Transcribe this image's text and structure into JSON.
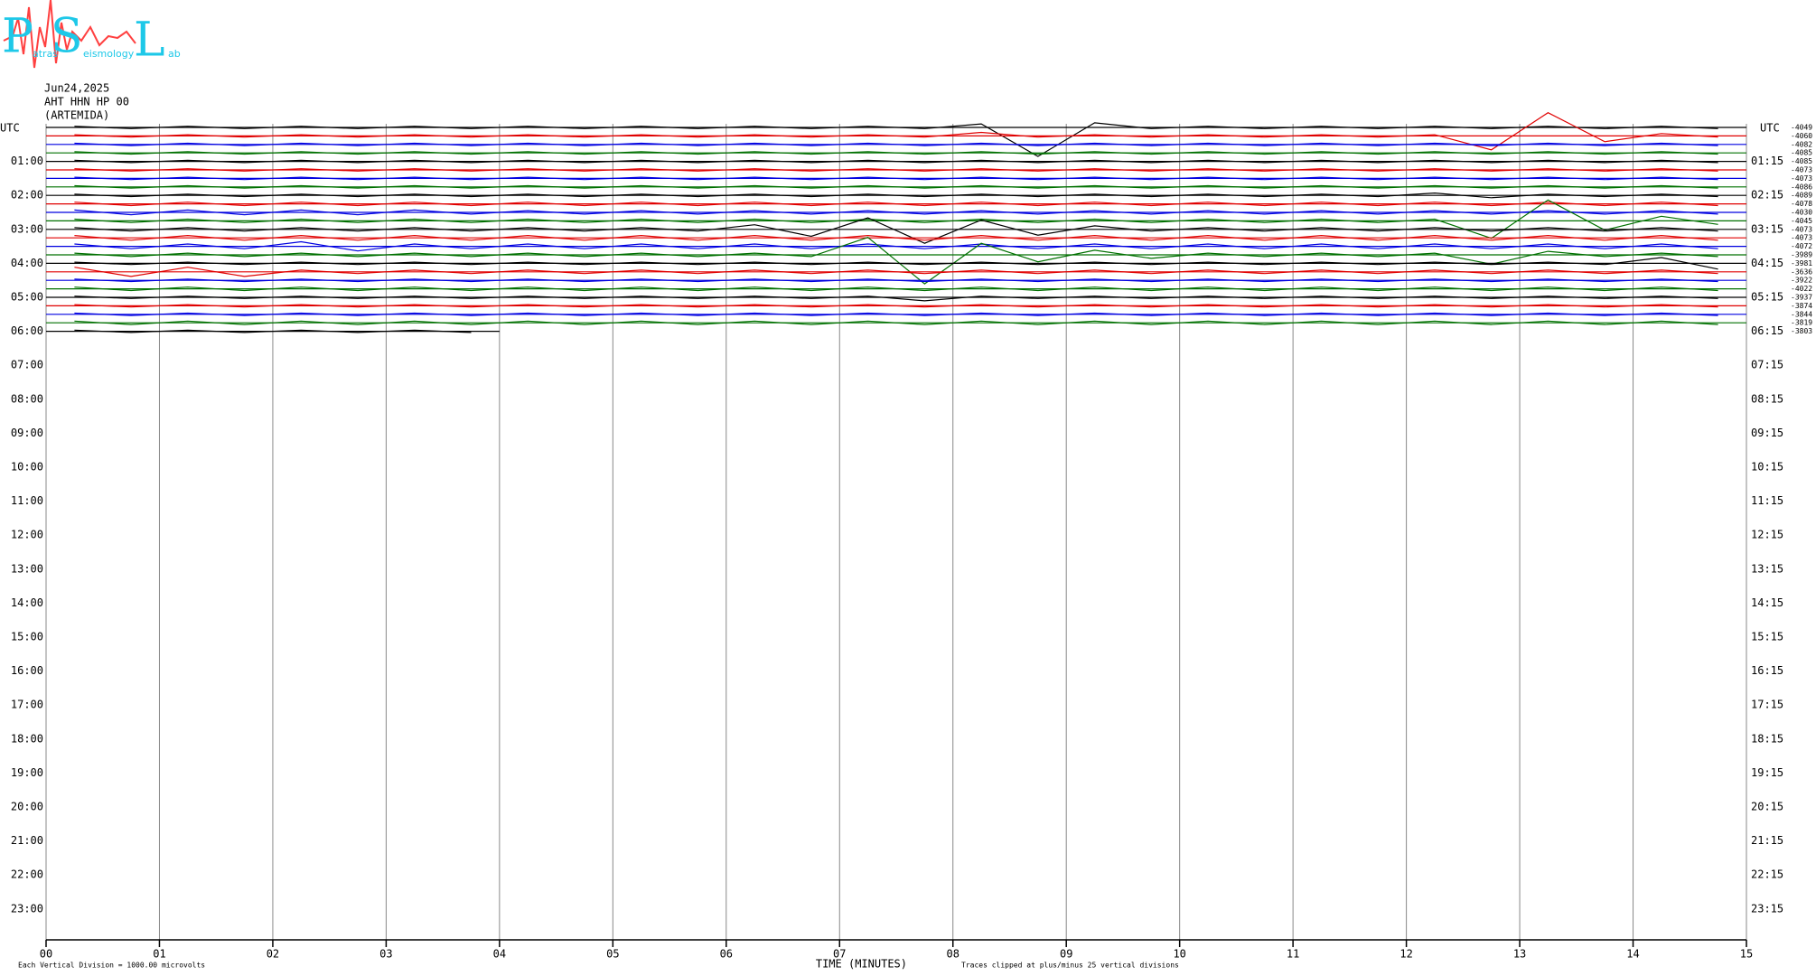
{
  "logo": {
    "letters": [
      "P",
      "S",
      "L"
    ],
    "small": [
      "atras",
      "eismology",
      "ab"
    ]
  },
  "chart_data": {
    "type": "helicorder",
    "header": [
      "Jun24,2025",
      "AHT HHN HP 00",
      "(ARTEMIDA)"
    ],
    "left_axis_title": "UTC",
    "right_axis_title": "UTC",
    "left_labels": [
      "01:00",
      "02:00",
      "03:00",
      "04:00",
      "05:00",
      "06:00",
      "07:00",
      "08:00",
      "09:00",
      "10:00",
      "11:00",
      "12:00",
      "13:00",
      "14:00",
      "15:00",
      "16:00",
      "17:00",
      "18:00",
      "19:00",
      "20:00",
      "21:00",
      "22:00",
      "23:00"
    ],
    "right_labels": [
      "01:15",
      "02:15",
      "03:15",
      "04:15",
      "05:15",
      "06:15",
      "07:15",
      "08:15",
      "09:15",
      "10:15",
      "11:15",
      "12:15",
      "13:15",
      "14:15",
      "15:15",
      "16:15",
      "17:15",
      "18:15",
      "19:15",
      "20:15",
      "21:15",
      "22:15",
      "23:15"
    ],
    "xlabel": "TIME (MINUTES)",
    "note_left": "Each Vertical Division = 1000.00 microvolts",
    "note_right": "Traces clipped at plus/minus 25 vertical divisions",
    "xlim": [
      0,
      15
    ],
    "xticks": [
      {
        "value": 0,
        "label": "00"
      },
      {
        "value": 1,
        "label": "01"
      },
      {
        "value": 2,
        "label": "02"
      },
      {
        "value": 3,
        "label": "03"
      },
      {
        "value": 4,
        "label": "04"
      },
      {
        "value": 5,
        "label": "05"
      },
      {
        "value": 6,
        "label": "06"
      },
      {
        "value": 7,
        "label": "07"
      },
      {
        "value": 8,
        "label": "08"
      },
      {
        "value": 9,
        "label": "09"
      },
      {
        "value": 10,
        "label": "10"
      },
      {
        "value": 11,
        "label": "11"
      },
      {
        "value": 12,
        "label": "12"
      },
      {
        "value": 13,
        "label": "13"
      },
      {
        "value": 14,
        "label": "14"
      },
      {
        "value": 15,
        "label": "15"
      }
    ],
    "series": [
      {
        "color": "#000000",
        "label": "-4049",
        "values": [
          1,
          1,
          1,
          1,
          1,
          1,
          1,
          1,
          1,
          1,
          1,
          1,
          1,
          1,
          1,
          1,
          3,
          25,
          4,
          1,
          1,
          1,
          1,
          1,
          1,
          1,
          1,
          1,
          1,
          1
        ]
      },
      {
        "color": "#e00000",
        "label": "-4060",
        "values": [
          1,
          1,
          1,
          1,
          1,
          1,
          1,
          1,
          1,
          1,
          1,
          1,
          1,
          1,
          1,
          1,
          3,
          1,
          1,
          1,
          1,
          1,
          1,
          1,
          1,
          12,
          20,
          5,
          2,
          1
        ]
      },
      {
        "color": "#0000e0",
        "label": "-4082",
        "values": [
          1,
          1,
          1,
          1,
          1,
          1,
          1,
          1,
          1,
          1,
          1,
          1,
          1,
          1,
          1,
          1,
          1,
          1,
          1,
          1,
          1,
          1,
          1,
          1,
          1,
          1,
          1,
          1,
          1,
          1
        ]
      },
      {
        "color": "#007000",
        "label": "-4085",
        "values": [
          1,
          1,
          1,
          1,
          1,
          1,
          1,
          1,
          1,
          1,
          1,
          1,
          1,
          1,
          1,
          1,
          1,
          1,
          1,
          1,
          1,
          1,
          1,
          1,
          1,
          1,
          1,
          1,
          1,
          1
        ]
      },
      {
        "color": "#000000",
        "label": "-4085",
        "values": [
          1,
          1,
          1,
          1,
          1,
          1,
          1,
          1,
          1,
          1,
          1,
          1,
          1,
          1,
          1,
          1,
          1,
          1,
          1,
          1,
          1,
          1,
          1,
          1,
          1,
          1,
          1,
          1,
          1,
          1
        ]
      },
      {
        "color": "#e00000",
        "label": "-4073",
        "values": [
          1,
          1,
          1,
          1,
          1,
          1,
          1,
          1,
          1,
          1,
          1,
          1,
          1,
          1,
          1,
          1,
          1,
          1,
          1,
          1,
          1,
          1,
          1,
          1,
          1,
          1,
          1,
          1,
          1,
          1
        ]
      },
      {
        "color": "#0000e0",
        "label": "-4073",
        "values": [
          1,
          1,
          1,
          1,
          1,
          1,
          1,
          1,
          1,
          1,
          1,
          1,
          1,
          1,
          1,
          1,
          1,
          1,
          1,
          1,
          1,
          1,
          1,
          1,
          1,
          1,
          1,
          1,
          1,
          1
        ]
      },
      {
        "color": "#007000",
        "label": "-4086",
        "values": [
          1,
          1,
          1,
          1,
          1,
          1,
          1,
          1,
          1,
          1,
          1,
          1,
          1,
          1,
          1,
          1,
          1,
          1,
          1,
          1,
          1,
          1,
          1,
          1,
          1,
          1,
          1,
          1,
          1,
          1
        ]
      },
      {
        "color": "#000000",
        "label": "-4089",
        "values": [
          1,
          1,
          1,
          1,
          1,
          1,
          1,
          1,
          1,
          1,
          1,
          1,
          1,
          1,
          1,
          1,
          1,
          1,
          1,
          1,
          1,
          1,
          1,
          1,
          2,
          2,
          1,
          1,
          1,
          1
        ]
      },
      {
        "color": "#e00000",
        "label": "-4078",
        "values": [
          1.5,
          1.5,
          1.5,
          1.5,
          1.5,
          1.5,
          1.5,
          1.5,
          1.5,
          1.5,
          1.5,
          1.5,
          1.5,
          1.5,
          1.5,
          1.5,
          1.5,
          1.5,
          1.5,
          1.5,
          1.5,
          1.5,
          1.5,
          1.5,
          1.5,
          1.5,
          1.5,
          1.5,
          1.5,
          1.5
        ]
      },
      {
        "color": "#0000e0",
        "label": "-4030",
        "values": [
          2,
          2,
          2,
          2,
          2,
          2,
          2,
          1.5,
          1.5,
          1.5,
          1.5,
          1.5,
          1.5,
          1.5,
          1.5,
          1.5,
          1.5,
          1.5,
          1.5,
          1.5,
          1.5,
          1.5,
          1.5,
          1.5,
          1.5,
          1.5,
          1.5,
          1.5,
          1.5,
          1.5
        ]
      },
      {
        "color": "#007000",
        "label": "-4045",
        "values": [
          1.5,
          1.5,
          1.5,
          1.5,
          1.5,
          1.5,
          1.5,
          1.5,
          1.5,
          1.5,
          1.5,
          1.5,
          1.5,
          1.5,
          1.5,
          1.5,
          1.5,
          1.5,
          1.5,
          1.5,
          1.5,
          1.5,
          1.5,
          1.5,
          1.5,
          15,
          18,
          8,
          4,
          3
        ]
      },
      {
        "color": "#000000",
        "label": "-4073",
        "values": [
          1.5,
          1.5,
          1.5,
          1.5,
          1.5,
          1.5,
          1.5,
          1.5,
          1.5,
          1.5,
          1.5,
          1.5,
          4,
          6,
          10,
          12,
          8,
          5,
          3,
          1.5,
          1.5,
          1.5,
          1.5,
          1.5,
          1.5,
          1.5,
          1.5,
          1.5,
          1.5,
          1.5
        ]
      },
      {
        "color": "#e00000",
        "label": "-4073",
        "values": [
          2,
          2,
          2,
          2,
          2,
          2,
          2,
          2,
          2,
          2,
          2,
          2,
          2,
          2,
          2,
          2,
          2,
          2,
          2,
          2,
          2,
          2,
          2,
          2,
          2,
          2,
          2,
          2,
          2,
          2
        ]
      },
      {
        "color": "#0000e0",
        "label": "-4072",
        "values": [
          2,
          2,
          2,
          2,
          4,
          4,
          2,
          2,
          2,
          2,
          2,
          2,
          2,
          2,
          2,
          2,
          2,
          2,
          2,
          2,
          2,
          2,
          2,
          2,
          2,
          2,
          2,
          2,
          2,
          2
        ]
      },
      {
        "color": "#007000",
        "label": "-3989",
        "values": [
          1.5,
          1.5,
          1.5,
          1.5,
          1.5,
          1.5,
          1.5,
          1.5,
          1.5,
          1.5,
          1.5,
          1.5,
          1.5,
          1.5,
          15,
          25,
          10,
          6,
          4,
          3,
          1.5,
          1.5,
          1.5,
          1.5,
          1.5,
          8,
          3,
          1.5,
          1.5,
          1.5
        ]
      },
      {
        "color": "#000000",
        "label": "-3981",
        "values": [
          1,
          1,
          1,
          1,
          1,
          1,
          1,
          1,
          1,
          1,
          1,
          1,
          1,
          1,
          1,
          1,
          1,
          1,
          1,
          1,
          1,
          1,
          1,
          1,
          1,
          1,
          1,
          1,
          5,
          5
        ]
      },
      {
        "color": "#e00000",
        "label": "-3636",
        "values": [
          4,
          4,
          4,
          4,
          1.5,
          1.5,
          1.5,
          1.5,
          1.5,
          1.5,
          1.5,
          1.5,
          1.5,
          1.5,
          1.5,
          1.5,
          1.5,
          1.5,
          1.5,
          1.5,
          1.5,
          1.5,
          1.5,
          1.5,
          1.5,
          1.5,
          1.5,
          1.5,
          1.5,
          1.5
        ]
      },
      {
        "color": "#0000e0",
        "label": "-3922",
        "values": [
          1,
          1,
          1,
          1,
          1,
          1,
          1,
          1,
          1,
          1,
          1,
          1,
          1,
          1,
          1,
          1,
          1,
          1,
          1,
          1,
          1,
          1,
          1,
          1,
          1,
          1,
          1,
          1,
          1,
          1
        ]
      },
      {
        "color": "#007000",
        "label": "-4022",
        "values": [
          1.5,
          1.5,
          1.5,
          1.5,
          1.5,
          1.5,
          1.5,
          1.5,
          1.5,
          1.5,
          1.5,
          1.5,
          1.5,
          1.5,
          1.5,
          1.5,
          1.5,
          1.5,
          1.5,
          1.5,
          1.5,
          1.5,
          1.5,
          1.5,
          1.5,
          1.5,
          1.5,
          1.5,
          1.5,
          1.5
        ]
      },
      {
        "color": "#000000",
        "label": "-3937",
        "values": [
          1,
          1,
          1,
          1,
          1,
          1,
          1,
          1,
          1,
          1,
          1,
          1,
          1,
          1,
          1,
          3,
          1,
          1,
          1,
          1,
          1,
          1,
          1,
          1,
          1,
          1,
          1,
          1,
          1,
          1
        ]
      },
      {
        "color": "#e00000",
        "label": "-3874",
        "values": [
          1,
          1,
          1,
          1,
          1,
          1,
          1,
          1,
          1,
          1,
          1,
          1,
          1,
          1,
          1,
          1,
          1,
          1,
          1,
          1,
          1,
          1,
          1,
          1,
          1,
          1,
          1,
          1,
          1,
          1
        ]
      },
      {
        "color": "#0000e0",
        "label": "-3844",
        "values": [
          1,
          1,
          1,
          1,
          1,
          1,
          1,
          1,
          1,
          1,
          1,
          1,
          1,
          1,
          1,
          1,
          1,
          1,
          1,
          1,
          1,
          1,
          1,
          1,
          1,
          1,
          1,
          1,
          1,
          1
        ]
      },
      {
        "color": "#007000",
        "label": "-3819",
        "values": [
          1.5,
          1.5,
          1.5,
          1.5,
          1.5,
          1.5,
          1.5,
          1.5,
          1.5,
          1.5,
          1.5,
          1.5,
          1.5,
          1.5,
          1.5,
          1.5,
          1.5,
          1.5,
          1.5,
          1.5,
          1.5,
          1.5,
          1.5,
          1.5,
          1.5,
          1.5,
          1.5,
          1.5,
          1.5,
          1.5
        ]
      },
      {
        "color": "#000000",
        "label": "-3803",
        "values": [
          1,
          1,
          1,
          1,
          1,
          1,
          1,
          1
        ]
      }
    ]
  }
}
